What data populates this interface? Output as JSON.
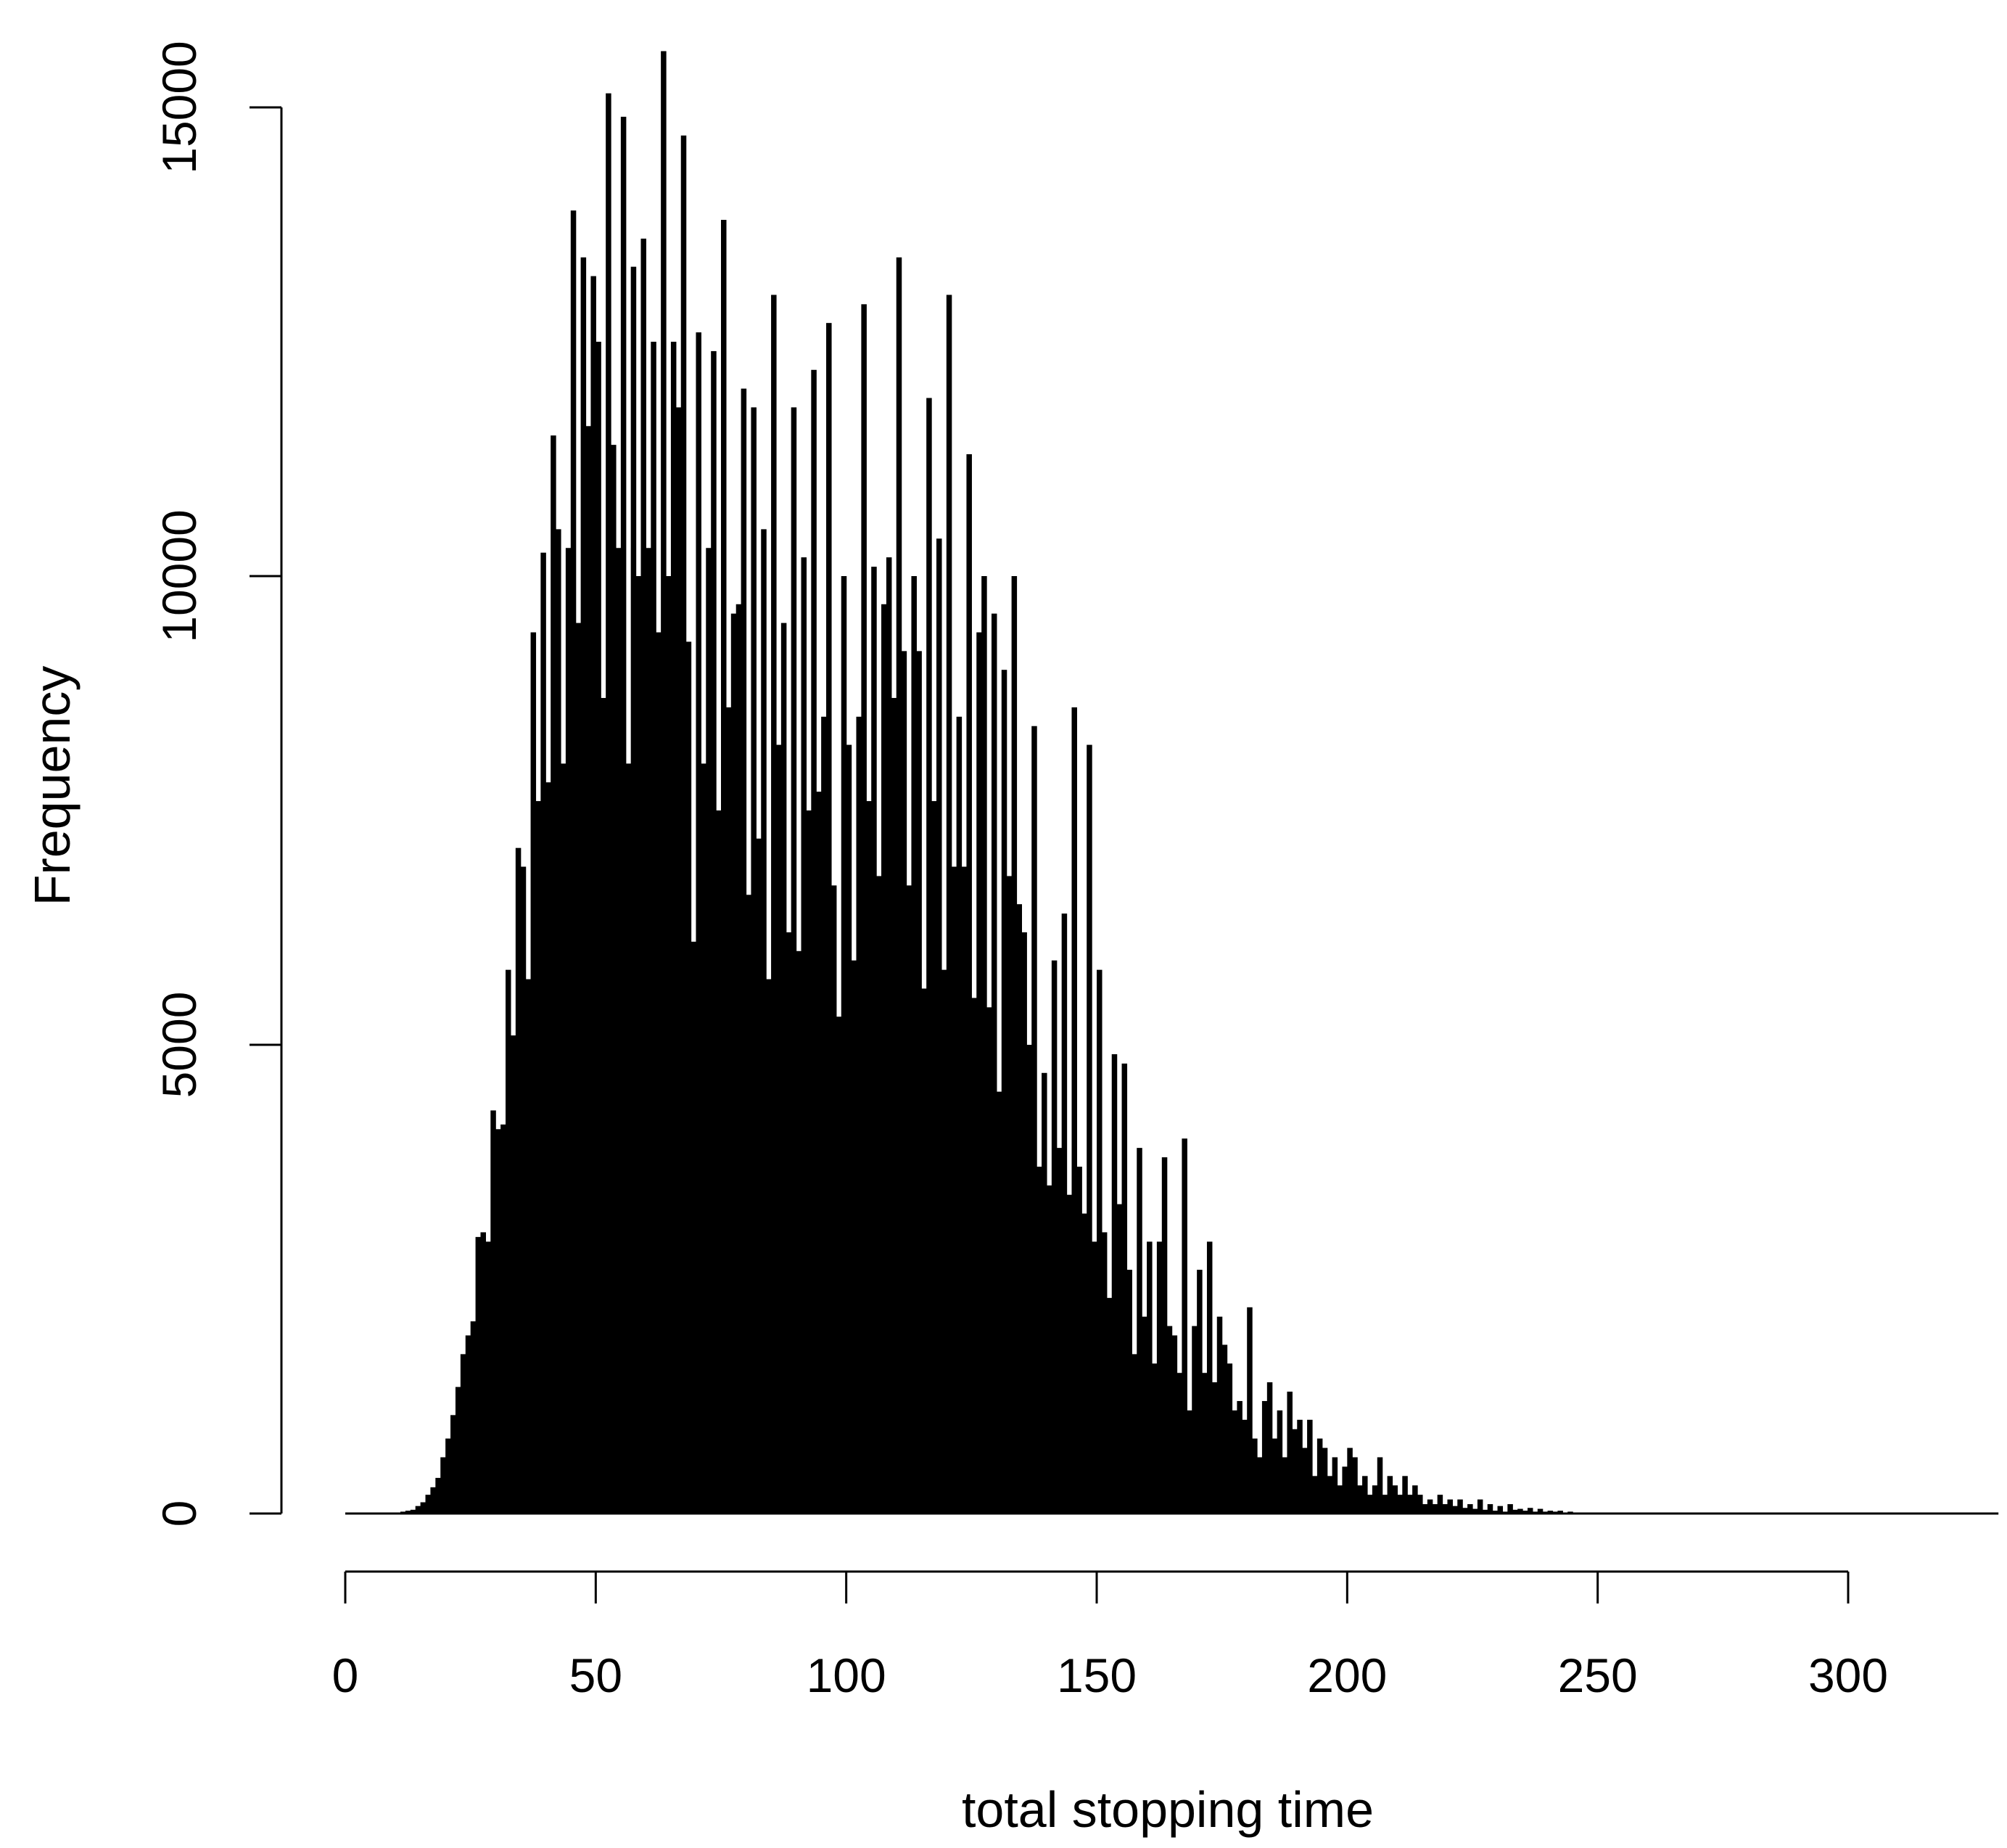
{
  "chart_data": {
    "type": "bar",
    "subtype": "histogram",
    "title": "",
    "xlabel": "total stopping time",
    "ylabel": "Frequency",
    "xlim": [
      0,
      330
    ],
    "ylim": [
      0,
      15000
    ],
    "bin_width": 1,
    "x_ticks": [
      0,
      50,
      100,
      150,
      200,
      250,
      300
    ],
    "y_ticks": [
      0,
      5000,
      10000,
      15000
    ],
    "x_tick_labels": [
      "0",
      "50",
      "100",
      "150",
      "200",
      "250",
      "300"
    ],
    "y_tick_labels": [
      "0",
      "5000",
      "10000",
      "15000"
    ],
    "grid": false,
    "legend": "none",
    "bar_color": "#000000",
    "x": [
      11,
      12,
      13,
      14,
      15,
      16,
      17,
      18,
      19,
      20,
      21,
      22,
      23,
      24,
      25,
      26,
      27,
      28,
      29,
      30,
      31,
      32,
      33,
      34,
      35,
      36,
      37,
      38,
      39,
      40,
      41,
      42,
      43,
      44,
      45,
      46,
      47,
      48,
      49,
      50,
      51,
      52,
      53,
      54,
      55,
      56,
      57,
      58,
      59,
      60,
      61,
      62,
      63,
      64,
      65,
      66,
      67,
      68,
      69,
      70,
      71,
      72,
      73,
      74,
      75,
      76,
      77,
      78,
      79,
      80,
      81,
      82,
      83,
      84,
      85,
      86,
      87,
      88,
      89,
      90,
      91,
      92,
      93,
      94,
      95,
      96,
      97,
      98,
      99,
      100,
      101,
      102,
      103,
      104,
      105,
      106,
      107,
      108,
      109,
      110,
      111,
      112,
      113,
      114,
      115,
      116,
      117,
      118,
      119,
      120,
      121,
      122,
      123,
      124,
      125,
      126,
      127,
      128,
      129,
      130,
      131,
      132,
      133,
      134,
      135,
      136,
      137,
      138,
      139,
      140,
      141,
      142,
      143,
      144,
      145,
      146,
      147,
      148,
      149,
      150,
      151,
      152,
      153,
      154,
      155,
      156,
      157,
      158,
      159,
      160,
      161,
      162,
      163,
      164,
      165,
      166,
      167,
      168,
      169,
      170,
      171,
      172,
      173,
      174,
      175,
      176,
      177,
      178,
      179,
      180,
      181,
      182,
      183,
      184,
      185,
      186,
      187,
      188,
      189,
      190,
      191,
      192,
      193,
      194,
      195,
      196,
      197,
      198,
      199,
      200,
      201,
      202,
      203,
      204,
      205,
      206,
      207,
      208,
      209,
      210,
      211,
      212,
      213,
      214,
      215,
      216,
      217,
      218,
      219,
      220,
      221,
      222,
      223,
      224,
      225,
      226,
      227,
      228,
      229,
      230,
      231,
      232,
      233,
      234,
      235,
      236,
      237,
      238,
      239,
      240,
      241,
      242,
      243,
      244,
      245
    ],
    "values": [
      10,
      20,
      30,
      40,
      80,
      120,
      200,
      280,
      380,
      600,
      800,
      1050,
      1350,
      1700,
      1900,
      2050,
      2950,
      3000,
      2900,
      4300,
      4100,
      4150,
      5800,
      5100,
      7100,
      6900,
      5700,
      9400,
      7600,
      10250,
      7800,
      11500,
      10500,
      8000,
      10300,
      13900,
      9500,
      13400,
      11600,
      13200,
      12500,
      8700,
      15150,
      11400,
      10300,
      14900,
      8000,
      13300,
      10000,
      13600,
      10300,
      12500,
      9400,
      15600,
      10000,
      12500,
      11800,
      14700,
      9300,
      6100,
      12600,
      8000,
      10300,
      12400,
      7500,
      13800,
      8600,
      9600,
      9700,
      12000,
      6600,
      11800,
      7200,
      10500,
      5700,
      13000,
      8200,
      9500,
      6200,
      11800,
      6000,
      10200,
      7500,
      12200,
      7700,
      8500,
      12700,
      6700,
      5300,
      10000,
      8200,
      5900,
      8500,
      12900,
      7600,
      10100,
      6800,
      9700,
      10200,
      8700,
      13400,
      9200,
      6700,
      10000,
      9200,
      5600,
      11900,
      7600,
      10400,
      5800,
      13000,
      6900,
      8500,
      6900,
      11300,
      5500,
      9400,
      10000,
      5400,
      9600,
      4500,
      9000,
      6800,
      10000,
      6500,
      6200,
      5000,
      8400,
      3700,
      4700,
      3500,
      5900,
      3900,
      6400,
      3400,
      8600,
      3700,
      3200,
      8200,
      2900,
      5800,
      3000,
      2300,
      4900,
      3300,
      4800,
      2600,
      1700,
      3900,
      2100,
      2900,
      1600,
      2900,
      3800,
      2000,
      1900,
      1500,
      4000,
      1100,
      2000,
      2600,
      1500,
      2900,
      1400,
      2100,
      1800,
      1600,
      1100,
      1200,
      1000,
      2200,
      800,
      600,
      1200,
      1400,
      800,
      1100,
      600,
      1300,
      900,
      1000,
      700,
      1000,
      400,
      800,
      700,
      400,
      600,
      300,
      500,
      700,
      600,
      300,
      400,
      200,
      300,
      600,
      200,
      400,
      300,
      200,
      400,
      200,
      300,
      200,
      100,
      150,
      100,
      200,
      100,
      150,
      80,
      150,
      60,
      100,
      50,
      150,
      40,
      100,
      30,
      80,
      20,
      100,
      40,
      50,
      30,
      60,
      20,
      50,
      20,
      30,
      20,
      30,
      10,
      20
    ]
  }
}
